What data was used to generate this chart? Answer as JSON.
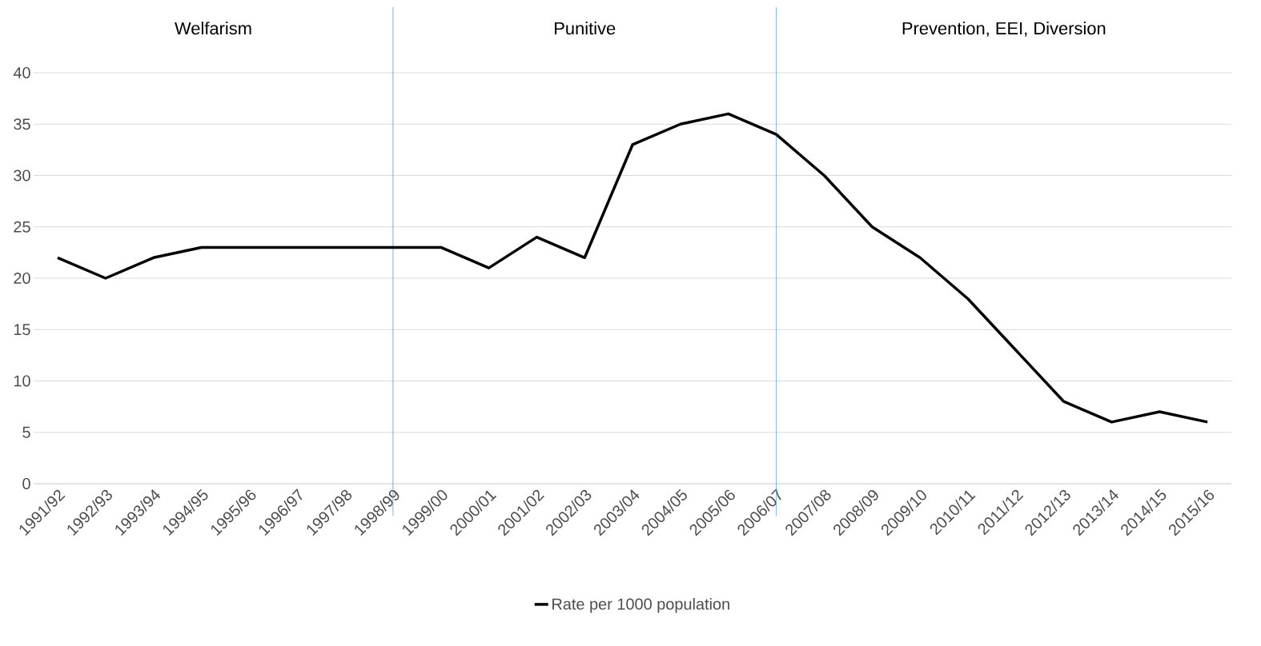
{
  "chart_data": {
    "type": "line",
    "categories": [
      "1991/92",
      "1992/93",
      "1993/94",
      "1994/95",
      "1995/96",
      "1996/97",
      "1997/98",
      "1998/99",
      "1999/00",
      "2000/01",
      "2001/02",
      "2002/03",
      "2003/04",
      "2004/05",
      "2005/06",
      "2006/07",
      "2007/08",
      "2008/09",
      "2009/10",
      "2010/11",
      "2011/12",
      "2012/13",
      "2013/14",
      "2014/15",
      "2015/16"
    ],
    "series": [
      {
        "name": "Rate per 1000 population",
        "color": "#000000",
        "values": [
          22,
          20,
          22,
          23,
          23,
          23,
          23,
          23,
          23,
          21,
          24,
          22,
          33,
          35,
          36,
          34,
          30,
          25,
          22,
          18,
          13,
          8,
          6,
          7,
          6
        ]
      }
    ],
    "ylim": [
      0,
      40
    ],
    "yticks": [
      0,
      5,
      10,
      15,
      20,
      25,
      30,
      35,
      40
    ],
    "grid": "y",
    "legend": "bottom",
    "marker": "none",
    "line_style": "solid",
    "ref_lines": [
      {
        "axis": "x",
        "value": "1998/99",
        "color": "#5b9bd5"
      },
      {
        "axis": "x",
        "value": "2006/07",
        "color": "#5b9bd5"
      }
    ],
    "annotations": [
      "Welfarism",
      "Punitive",
      "Prevention, EEI, Diversion"
    ]
  }
}
